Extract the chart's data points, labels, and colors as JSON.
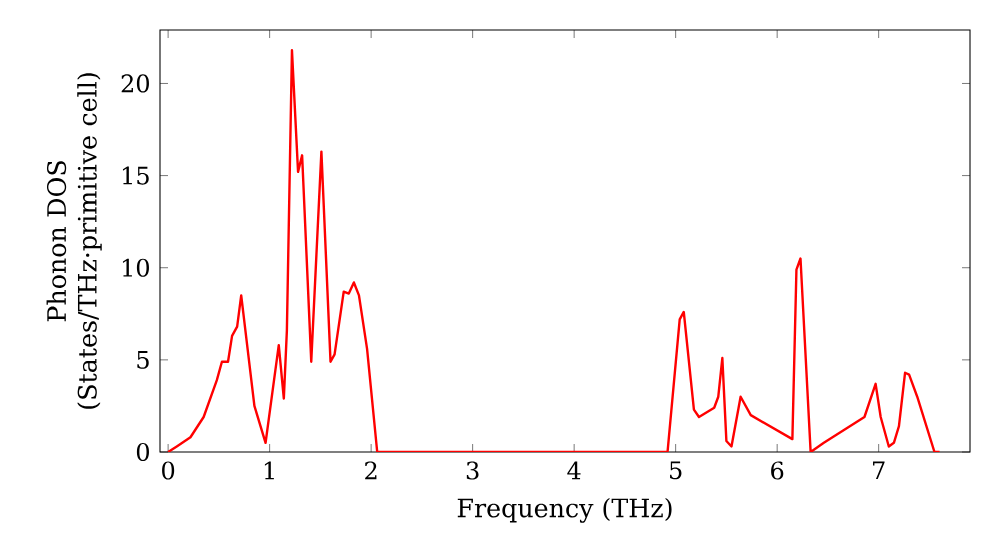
{
  "chart_data": {
    "type": "line",
    "xlabel": "Frequency (THz)",
    "ylabel": "Phonon DOS (States/THz·primitive cell)",
    "xlim": [
      -0.08,
      7.9
    ],
    "ylim": [
      0,
      22.9
    ],
    "xticks": [
      0,
      1,
      2,
      3,
      4,
      5,
      6,
      7
    ],
    "yticks": [
      0,
      5,
      10,
      15,
      20
    ],
    "marker": "none",
    "line_style": "solid",
    "series": [
      {
        "color": "#ff0000",
        "x": [
          0,
          0.085,
          0.22,
          0.35,
          0.48,
          0.53,
          0.59,
          0.63,
          0.68,
          0.72,
          0.85,
          0.96,
          1.09,
          1.14,
          1.17,
          1.22,
          1.28,
          1.32,
          1.41,
          1.51,
          1.6,
          1.64,
          1.73,
          1.78,
          1.83,
          1.88,
          1.96,
          2.06,
          3.0,
          4.0,
          4.92,
          5.04,
          5.08,
          5.18,
          5.23,
          5.38,
          5.42,
          5.46,
          5.5,
          5.55,
          5.64,
          5.74,
          6.15,
          6.19,
          6.23,
          6.33,
          6.46,
          6.86,
          6.97,
          7.02,
          7.1,
          7.15,
          7.2,
          7.26,
          7.3,
          7.38,
          7.55,
          7.6
        ],
        "values": [
          0,
          0.3,
          0.8,
          1.9,
          3.9,
          4.9,
          4.9,
          6.3,
          6.8,
          8.5,
          2.5,
          0.5,
          5.8,
          2.9,
          6.6,
          21.8,
          15.2,
          16.1,
          4.9,
          16.3,
          4.9,
          5.3,
          8.7,
          8.6,
          9.2,
          8.5,
          5.6,
          0,
          0,
          0,
          0,
          7.2,
          7.6,
          2.3,
          1.9,
          2.4,
          3.0,
          5.1,
          0.6,
          0.3,
          3.0,
          2.0,
          0.7,
          9.9,
          10.5,
          0,
          0.5,
          1.9,
          3.7,
          1.9,
          0.3,
          0.5,
          1.4,
          4.3,
          4.2,
          3.0,
          0,
          0
        ]
      }
    ]
  }
}
